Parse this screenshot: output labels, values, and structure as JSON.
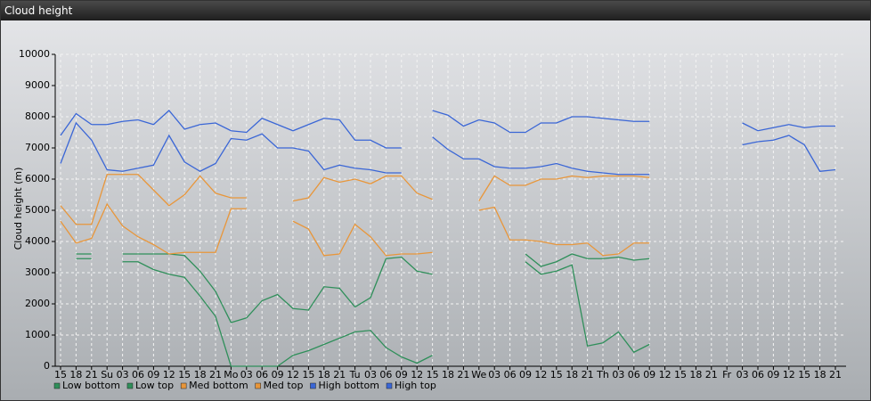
{
  "chart_data": {
    "type": "line",
    "title": "Cloud height",
    "y_label": "Cloud height (m)",
    "categories": [
      "15",
      "18",
      "21",
      "Su",
      "03",
      "06",
      "09",
      "12",
      "15",
      "18",
      "21",
      "Mo",
      "03",
      "06",
      "09",
      "12",
      "15",
      "18",
      "21",
      "Tu",
      "03",
      "06",
      "09",
      "12",
      "15",
      "18",
      "21",
      "We",
      "03",
      "06",
      "09",
      "12",
      "15",
      "18",
      "21",
      "Th",
      "03",
      "06",
      "09",
      "12",
      "15",
      "18",
      "21",
      "Fr",
      "03",
      "06",
      "09",
      "12",
      "15",
      "18",
      "21"
    ],
    "ylim": [
      0,
      10000
    ],
    "yticks": [
      0,
      1000,
      2000,
      3000,
      4000,
      5000,
      6000,
      7000,
      8000,
      9000,
      10000
    ],
    "grid": true,
    "series": [
      {
        "name": "Low bottom",
        "color": "#2f8f5a",
        "values": [
          null,
          3450,
          3450,
          null,
          3350,
          3350,
          3100,
          2950,
          2850,
          2250,
          1600,
          0,
          0,
          0,
          0,
          350,
          500,
          700,
          900,
          1100,
          1150,
          600,
          300,
          100,
          350,
          null,
          null,
          null,
          null,
          null,
          3350,
          2950,
          3050,
          3250,
          650,
          750,
          1100,
          450,
          700,
          null,
          null,
          null,
          null,
          null,
          null,
          null,
          null,
          null,
          null,
          null,
          null
        ]
      },
      {
        "name": "Low top",
        "color": "#2f8f5a",
        "values": [
          null,
          3600,
          3600,
          null,
          3600,
          3600,
          3600,
          3600,
          3550,
          3050,
          2400,
          1400,
          1550,
          2100,
          2300,
          1850,
          1800,
          2550,
          2500,
          1900,
          2200,
          3450,
          3500,
          3050,
          2950,
          null,
          null,
          null,
          null,
          null,
          3600,
          3200,
          3350,
          3600,
          3450,
          3450,
          3500,
          3400,
          3450,
          null,
          null,
          null,
          null,
          null,
          null,
          null,
          null,
          null,
          null,
          null,
          null
        ]
      },
      {
        "name": "Med bottom",
        "color": "#e8963a",
        "values": [
          4650,
          3950,
          4100,
          5200,
          4500,
          4150,
          3900,
          3600,
          3650,
          3650,
          3650,
          5050,
          5050,
          null,
          null,
          4650,
          4400,
          3550,
          3600,
          4550,
          4150,
          3550,
          3600,
          3600,
          3650,
          null,
          null,
          5000,
          5100,
          4050,
          4050,
          4000,
          3900,
          3900,
          3950,
          3550,
          3600,
          3950,
          3950,
          null,
          null,
          null,
          null,
          null,
          null,
          null,
          null,
          null,
          null,
          null,
          null
        ]
      },
      {
        "name": "Med top",
        "color": "#e8963a",
        "values": [
          5150,
          4550,
          4550,
          6150,
          6150,
          6150,
          5650,
          5150,
          5500,
          6100,
          5550,
          5400,
          5400,
          null,
          null,
          5300,
          5400,
          6050,
          5900,
          6000,
          5850,
          6100,
          6100,
          5550,
          5350,
          null,
          null,
          5300,
          6100,
          5800,
          5800,
          6000,
          6000,
          6100,
          6050,
          6100,
          6100,
          6100,
          6050,
          null,
          null,
          null,
          null,
          null,
          null,
          null,
          null,
          null,
          null,
          null,
          null
        ]
      },
      {
        "name": "High bottom",
        "color": "#3a66d6",
        "values": [
          6500,
          7800,
          7250,
          6300,
          6250,
          6350,
          6450,
          7400,
          6550,
          6250,
          6500,
          7300,
          7250,
          7450,
          7000,
          7000,
          6900,
          6300,
          6450,
          6350,
          6300,
          6200,
          6200,
          null,
          7350,
          6950,
          6650,
          6650,
          6400,
          6350,
          6350,
          6400,
          6500,
          6350,
          6250,
          6200,
          6150,
          6150,
          6150,
          null,
          null,
          null,
          null,
          null,
          7100,
          7200,
          7250,
          7400,
          7100,
          6250,
          6300
        ]
      },
      {
        "name": "High top",
        "color": "#3a66d6",
        "values": [
          7400,
          8100,
          7750,
          7750,
          7850,
          7900,
          7750,
          8200,
          7600,
          7750,
          7800,
          7550,
          7500,
          7950,
          7750,
          7550,
          7750,
          7950,
          7900,
          7250,
          7250,
          7000,
          7000,
          null,
          8200,
          8050,
          7700,
          7900,
          7800,
          7500,
          7500,
          7800,
          7800,
          8000,
          8000,
          7950,
          7900,
          7850,
          7850,
          null,
          null,
          null,
          null,
          null,
          7800,
          7550,
          7650,
          7750,
          7650,
          7700,
          7700
        ]
      }
    ]
  }
}
